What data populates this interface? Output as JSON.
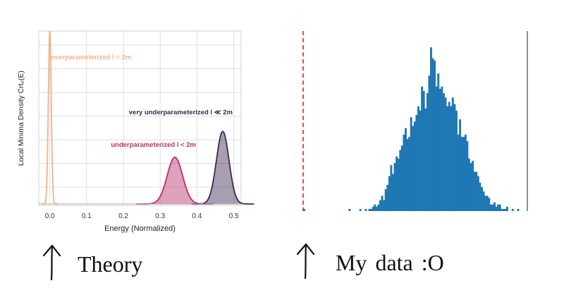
{
  "chart_data": [
    {
      "type": "area",
      "title": "",
      "xlabel": "Energy (Normalized)",
      "ylabel": "Local Minima Density Crt₀(E)",
      "xlim": [
        -0.03,
        0.52
      ],
      "x_ticks": [
        "0.0",
        "0.1",
        "0.2",
        "0.3",
        "0.4",
        "0.5"
      ],
      "grid": true,
      "series": [
        {
          "name": "overparameterized l = 2m",
          "peak_x": 0.0,
          "peak_y": 1.0,
          "width": 0.004,
          "color": "#f4b08c",
          "fill": false
        },
        {
          "name": "underparameterized l < 2m",
          "peak_x": 0.34,
          "peak_y": 0.27,
          "width": 0.021,
          "color": "#b8306a",
          "fill": true
        },
        {
          "name": "very underparameterized l ≪ 2m",
          "peak_x": 0.47,
          "peak_y": 0.42,
          "width": 0.017,
          "color": "#3b2a4f",
          "fill": true
        }
      ]
    },
    {
      "type": "bar",
      "title": "",
      "xlabel": "",
      "ylabel": "",
      "color": "#1f77b4",
      "reference_line_color": "#e05050",
      "counts": [
        1,
        0,
        0,
        0,
        0,
        0,
        0,
        0,
        0,
        0,
        0,
        0,
        0,
        0,
        0,
        0,
        0,
        0,
        0,
        0,
        0,
        0,
        0,
        0,
        0,
        1,
        0,
        0,
        0,
        0,
        0,
        1,
        0,
        0,
        1,
        0,
        1,
        1,
        2,
        3,
        2,
        3,
        5,
        7,
        5,
        10,
        12,
        16,
        21,
        17,
        22,
        25,
        24,
        28,
        30,
        35,
        38,
        33,
        34,
        43,
        39,
        41,
        44,
        48,
        46,
        57,
        55,
        47,
        54,
        62,
        75,
        70,
        69,
        57,
        63,
        56,
        57,
        54,
        52,
        48,
        50,
        48,
        52,
        49,
        46,
        35,
        42,
        34,
        34,
        35,
        32,
        24,
        22,
        23,
        18,
        18,
        16,
        13,
        11,
        9,
        7,
        7,
        6,
        3,
        3,
        4,
        2,
        3,
        3,
        1,
        1,
        1,
        2,
        0,
        0,
        1,
        0,
        0,
        1
      ]
    }
  ],
  "captions": {
    "left": "Theory",
    "right": "My  data  :O"
  }
}
